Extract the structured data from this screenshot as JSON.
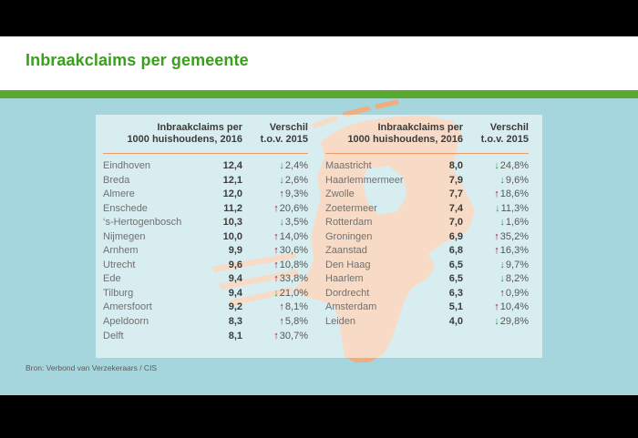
{
  "title": "Inbraakclaims per gemeente",
  "source": "Bron: Verbond van Verzekeraars / CIS",
  "table_header": {
    "metric_line1": "Inbraakclaims per",
    "metric_line2": "1000 huishoudens, 2016",
    "change_line1": "Verschil",
    "change_line2": "t.o.v. 2015"
  },
  "tables": [
    {
      "rows": [
        {
          "city": "Eindhoven",
          "value": "12,4",
          "direction": "down",
          "change": "2,4%"
        },
        {
          "city": "Breda",
          "value": "12,1",
          "direction": "down",
          "change": "2,6%"
        },
        {
          "city": "Almere",
          "value": "12,0",
          "direction": "up",
          "change": "9,3%"
        },
        {
          "city": "Enschede",
          "value": "11,2",
          "direction": "up",
          "change": "20,6%"
        },
        {
          "city": "‘s-Hertogenbosch",
          "value": "10,3",
          "direction": "down",
          "change": "3,5%"
        },
        {
          "city": "Nijmegen",
          "value": "10,0",
          "direction": "up",
          "change": "14,0%"
        },
        {
          "city": "Arnhem",
          "value": "9,9",
          "direction": "up",
          "change": "30,6%"
        },
        {
          "city": "Utrecht",
          "value": "9,6",
          "direction": "up",
          "change": "10,8%"
        },
        {
          "city": "Ede",
          "value": "9,4",
          "direction": "up",
          "change": "33,8%"
        },
        {
          "city": "Tilburg",
          "value": "9,4",
          "direction": "down",
          "change": "21,0%"
        },
        {
          "city": "Amersfoort",
          "value": "9,2",
          "direction": "up",
          "change": "8,1%"
        },
        {
          "city": "Apeldoorn",
          "value": "8,3",
          "direction": "up",
          "change": "5,8%"
        },
        {
          "city": "Delft",
          "value": "8,1",
          "direction": "up",
          "change": "30,7%"
        }
      ]
    },
    {
      "rows": [
        {
          "city": "Maastricht",
          "value": "8,0",
          "direction": "down",
          "change": "24,8%"
        },
        {
          "city": "Haarlemmermeer",
          "value": "7,9",
          "direction": "down",
          "change": "9,6%"
        },
        {
          "city": "Zwolle",
          "value": "7,7",
          "direction": "up",
          "change": "18,6%"
        },
        {
          "city": "Zoetermeer",
          "value": "7,4",
          "direction": "down",
          "change": "11,3%"
        },
        {
          "city": "Rotterdam",
          "value": "7,0",
          "direction": "down",
          "change": "1,6%"
        },
        {
          "city": "Groningen",
          "value": "6,9",
          "direction": "up",
          "change": "35,2%"
        },
        {
          "city": "Zaanstad",
          "value": "6,8",
          "direction": "up",
          "change": "16,3%"
        },
        {
          "city": "Den Haag",
          "value": "6,5",
          "direction": "down",
          "change": "9,7%"
        },
        {
          "city": "Haarlem",
          "value": "6,5",
          "direction": "down",
          "change": "8,2%"
        },
        {
          "city": "Dordrecht",
          "value": "6,3",
          "direction": "up",
          "change": "0,9%"
        },
        {
          "city": "Amsterdam",
          "value": "5,1",
          "direction": "up",
          "change": "10,4%"
        },
        {
          "city": "Leiden",
          "value": "4,0",
          "direction": "down",
          "change": "29,8%"
        }
      ]
    }
  ],
  "map": {
    "region": "Nederland",
    "fill": "#f0ad7d"
  },
  "colors": {
    "accent-green": "#3a9f1d",
    "bar-green": "#58a92e",
    "bg-blue": "#a5d6de",
    "map-orange": "#f0ad7d",
    "rule-orange": "#ee9d68",
    "ink": "#3c3c3b",
    "muted": "#70706f",
    "gray": "#575756",
    "up-red": "#a51237",
    "down-green": "#2f9c35",
    "source-gray": "#5b5b5a"
  },
  "chart_data": {
    "type": "table",
    "title": "Inbraakclaims per gemeente",
    "columns": [
      "Gemeente",
      "Inbraakclaims per 1000 huishoudens, 2016",
      "Verschil t.o.v. 2015 (%)"
    ],
    "rows": [
      [
        "Eindhoven",
        12.4,
        -2.4
      ],
      [
        "Breda",
        12.1,
        -2.6
      ],
      [
        "Almere",
        12.0,
        9.3
      ],
      [
        "Enschede",
        11.2,
        20.6
      ],
      [
        "'s-Hertogenbosch",
        10.3,
        -3.5
      ],
      [
        "Nijmegen",
        10.0,
        14.0
      ],
      [
        "Arnhem",
        9.9,
        30.6
      ],
      [
        "Utrecht",
        9.6,
        10.8
      ],
      [
        "Ede",
        9.4,
        33.8
      ],
      [
        "Tilburg",
        9.4,
        -21.0
      ],
      [
        "Amersfoort",
        9.2,
        8.1
      ],
      [
        "Apeldoorn",
        8.3,
        5.8
      ],
      [
        "Delft",
        8.1,
        30.7
      ],
      [
        "Maastricht",
        8.0,
        -24.8
      ],
      [
        "Haarlemmermeer",
        7.9,
        -9.6
      ],
      [
        "Zwolle",
        7.7,
        18.6
      ],
      [
        "Zoetermeer",
        7.4,
        -11.3
      ],
      [
        "Rotterdam",
        7.0,
        -1.6
      ],
      [
        "Groningen",
        6.9,
        35.2
      ],
      [
        "Zaanstad",
        6.8,
        16.3
      ],
      [
        "Den Haag",
        6.5,
        -9.7
      ],
      [
        "Haarlem",
        6.5,
        -8.2
      ],
      [
        "Dordrecht",
        6.3,
        0.9
      ],
      [
        "Amsterdam",
        5.1,
        10.4
      ],
      [
        "Leiden",
        4.0,
        -29.8
      ]
    ]
  }
}
